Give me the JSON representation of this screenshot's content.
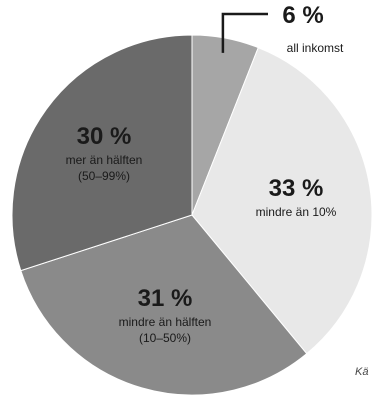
{
  "chart_data": {
    "type": "pie",
    "slices": [
      {
        "value": 6,
        "percent_label": "6 %",
        "label_lines": [
          "all inkomst"
        ],
        "color": "#a6a6a6"
      },
      {
        "value": 33,
        "percent_label": "33 %",
        "label_lines": [
          "mindre än 10%"
        ],
        "color": "#e8e8e8"
      },
      {
        "value": 31,
        "percent_label": "31 %",
        "label_lines": [
          "mindre än hälften",
          "(10–50%)"
        ],
        "color": "#8a8a8a"
      },
      {
        "value": 30,
        "percent_label": "30 %",
        "label_lines": [
          "mer än hälften",
          "(50–99%)"
        ],
        "color": "#6a6a6a"
      }
    ],
    "source_fragment": "Kä"
  }
}
